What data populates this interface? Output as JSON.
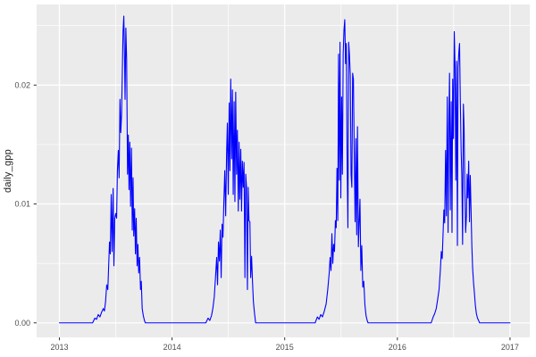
{
  "figure": {
    "background": "#ffffff"
  },
  "chart_data": {
    "type": "line",
    "title": "",
    "xlabel": "",
    "ylabel": "daily_gpp",
    "legend": "none",
    "grid": true,
    "theme": "ggplot-grey",
    "panel_background": "#ebebeb",
    "grid_color": "#ffffff",
    "line_color": "#0000ff",
    "axis_text_color": "#4d4d4d",
    "tick_mark_color": "#333333",
    "xlim": [
      2012.798,
      2017.175
    ],
    "ylim": [
      -0.00122,
      0.02678
    ],
    "x_ticks": [
      {
        "value": 2013,
        "label": "2013"
      },
      {
        "value": 2014,
        "label": "2014"
      },
      {
        "value": 2015,
        "label": "2015"
      },
      {
        "value": 2016,
        "label": "2016"
      },
      {
        "value": 2017,
        "label": "2017"
      }
    ],
    "y_ticks": [
      {
        "value": 0.0,
        "label": "0.00"
      },
      {
        "value": 0.01,
        "label": "0.01"
      },
      {
        "value": 0.02,
        "label": "0.02"
      }
    ],
    "series": [
      {
        "name": "daily_gpp",
        "color": "#0000ff",
        "points": [
          [
            2013.0,
            0
          ],
          [
            2013.295,
            0
          ],
          [
            2013.315,
            0.0004
          ],
          [
            2013.33,
            0.0003
          ],
          [
            2013.345,
            0.0007
          ],
          [
            2013.36,
            0.0005
          ],
          [
            2013.375,
            0.0009
          ],
          [
            2013.39,
            0.0012
          ],
          [
            2013.4,
            0.001
          ],
          [
            2013.41,
            0.0018
          ],
          [
            2013.42,
            0.0032
          ],
          [
            2013.43,
            0.0028
          ],
          [
            2013.445,
            0.0068
          ],
          [
            2013.452,
            0.0058
          ],
          [
            2013.46,
            0.0108
          ],
          [
            2013.468,
            0.006
          ],
          [
            2013.477,
            0.0113
          ],
          [
            2013.484,
            0.0048
          ],
          [
            2013.492,
            0.0088
          ],
          [
            2013.5,
            0.0092
          ],
          [
            2013.508,
            0.0088
          ],
          [
            2013.515,
            0.0128
          ],
          [
            2013.523,
            0.0145
          ],
          [
            2013.53,
            0.0122
          ],
          [
            2013.538,
            0.0188
          ],
          [
            2013.545,
            0.016
          ],
          [
            2013.552,
            0.0175
          ],
          [
            2013.558,
            0.0208
          ],
          [
            2013.565,
            0.0245
          ],
          [
            2013.572,
            0.0258
          ],
          [
            2013.578,
            0.0225
          ],
          [
            2013.583,
            0.0188
          ],
          [
            2013.59,
            0.0248
          ],
          [
            2013.597,
            0.0222
          ],
          [
            2013.605,
            0.0125
          ],
          [
            2013.612,
            0.0158
          ],
          [
            2013.618,
            0.0112
          ],
          [
            2013.625,
            0.0152
          ],
          [
            2013.632,
            0.0098
          ],
          [
            2013.64,
            0.0147
          ],
          [
            2013.647,
            0.0078
          ],
          [
            2013.654,
            0.0122
          ],
          [
            2013.66,
            0.0073
          ],
          [
            2013.668,
            0.0096
          ],
          [
            2013.675,
            0.0058
          ],
          [
            2013.682,
            0.0088
          ],
          [
            2013.69,
            0.0048
          ],
          [
            2013.697,
            0.0066
          ],
          [
            2013.704,
            0.0042
          ],
          [
            2013.712,
            0.0055
          ],
          [
            2013.72,
            0.0028
          ],
          [
            2013.727,
            0.0035
          ],
          [
            2013.735,
            0.0012
          ],
          [
            2013.745,
            0.0006
          ],
          [
            2013.755,
            0.0002
          ],
          [
            2013.763,
            0
          ],
          [
            2014.3,
            0
          ],
          [
            2014.32,
            0.0004
          ],
          [
            2014.335,
            0.0002
          ],
          [
            2014.35,
            0.0006
          ],
          [
            2014.362,
            0.0012
          ],
          [
            2014.375,
            0.0022
          ],
          [
            2014.388,
            0.0042
          ],
          [
            2014.396,
            0.0055
          ],
          [
            2014.404,
            0.0032
          ],
          [
            2014.412,
            0.0068
          ],
          [
            2014.42,
            0.0052
          ],
          [
            2014.428,
            0.0078
          ],
          [
            2014.436,
            0.0038
          ],
          [
            2014.444,
            0.0083
          ],
          [
            2014.452,
            0.0072
          ],
          [
            2014.46,
            0.0102
          ],
          [
            2014.468,
            0.0128
          ],
          [
            2014.476,
            0.009
          ],
          [
            2014.484,
            0.0142
          ],
          [
            2014.491,
            0.0168
          ],
          [
            2014.499,
            0.0108
          ],
          [
            2014.507,
            0.0185
          ],
          [
            2014.514,
            0.0128
          ],
          [
            2014.521,
            0.0205
          ],
          [
            2014.529,
            0.0138
          ],
          [
            2014.536,
            0.0196
          ],
          [
            2014.543,
            0.0108
          ],
          [
            2014.551,
            0.0186
          ],
          [
            2014.558,
            0.0102
          ],
          [
            2014.565,
            0.0194
          ],
          [
            2014.573,
            0.0125
          ],
          [
            2014.58,
            0.0162
          ],
          [
            2014.588,
            0.0094
          ],
          [
            2014.595,
            0.0152
          ],
          [
            2014.602,
            0.0104
          ],
          [
            2014.61,
            0.0146
          ],
          [
            2014.617,
            0.0094
          ],
          [
            2014.624,
            0.0136
          ],
          [
            2014.632,
            0.0114
          ],
          [
            2014.639,
            0.0135
          ],
          [
            2014.647,
            0.0038
          ],
          [
            2014.654,
            0.0125
          ],
          [
            2014.661,
            0.0114
          ],
          [
            2014.669,
            0.0028
          ],
          [
            2014.676,
            0.0114
          ],
          [
            2014.683,
            0.0086
          ],
          [
            2014.691,
            0.0085
          ],
          [
            2014.698,
            0.0038
          ],
          [
            2014.706,
            0.0056
          ],
          [
            2014.714,
            0.0035
          ],
          [
            2014.722,
            0.0018
          ],
          [
            2014.732,
            0.0008
          ],
          [
            2014.742,
            0
          ],
          [
            2015.27,
            0
          ],
          [
            2015.29,
            0.0005
          ],
          [
            2015.305,
            0.0003
          ],
          [
            2015.32,
            0.0007
          ],
          [
            2015.335,
            0.0005
          ],
          [
            2015.352,
            0.001
          ],
          [
            2015.368,
            0.0016
          ],
          [
            2015.382,
            0.0028
          ],
          [
            2015.395,
            0.0042
          ],
          [
            2015.403,
            0.0055
          ],
          [
            2015.411,
            0.0044
          ],
          [
            2015.419,
            0.0075
          ],
          [
            2015.427,
            0.005
          ],
          [
            2015.434,
            0.0066
          ],
          [
            2015.442,
            0.006
          ],
          [
            2015.45,
            0.0086
          ],
          [
            2015.457,
            0.008
          ],
          [
            2015.464,
            0.013
          ],
          [
            2015.471,
            0.0086
          ],
          [
            2015.478,
            0.0226
          ],
          [
            2015.485,
            0.012
          ],
          [
            2015.491,
            0.0236
          ],
          [
            2015.498,
            0.0105
          ],
          [
            2015.505,
            0.019
          ],
          [
            2015.512,
            0.0125
          ],
          [
            2015.519,
            0.0226
          ],
          [
            2015.526,
            0.0246
          ],
          [
            2015.533,
            0.0255
          ],
          [
            2015.54,
            0.0218
          ],
          [
            2015.547,
            0.0235
          ],
          [
            2015.554,
            0.0135
          ],
          [
            2015.561,
            0.008
          ],
          [
            2015.568,
            0.0236
          ],
          [
            2015.575,
            0.0225
          ],
          [
            2015.582,
            0.0208
          ],
          [
            2015.589,
            0.0125
          ],
          [
            2015.596,
            0.0114
          ],
          [
            2015.603,
            0.021
          ],
          [
            2015.61,
            0.0205
          ],
          [
            2015.617,
            0.0144
          ],
          [
            2015.625,
            0.0085
          ],
          [
            2015.632,
            0.0155
          ],
          [
            2015.639,
            0.0074
          ],
          [
            2015.646,
            0.0165
          ],
          [
            2015.654,
            0.0064
          ],
          [
            2015.661,
            0.0085
          ],
          [
            2015.668,
            0.0104
          ],
          [
            2015.676,
            0.0044
          ],
          [
            2015.684,
            0.0065
          ],
          [
            2015.693,
            0.003
          ],
          [
            2015.702,
            0.0035
          ],
          [
            2015.712,
            0.0015
          ],
          [
            2015.722,
            0.0006
          ],
          [
            2015.732,
            0.0002
          ],
          [
            2015.74,
            0
          ],
          [
            2016.3,
            0
          ],
          [
            2016.318,
            0.0005
          ],
          [
            2016.332,
            0.0008
          ],
          [
            2016.345,
            0.0012
          ],
          [
            2016.358,
            0.002
          ],
          [
            2016.37,
            0.0028
          ],
          [
            2016.382,
            0.0045
          ],
          [
            2016.39,
            0.006
          ],
          [
            2016.398,
            0.0054
          ],
          [
            2016.406,
            0.0076
          ],
          [
            2016.413,
            0.0095
          ],
          [
            2016.42,
            0.0084
          ],
          [
            2016.428,
            0.0145
          ],
          [
            2016.435,
            0.009
          ],
          [
            2016.443,
            0.019
          ],
          [
            2016.45,
            0.0076
          ],
          [
            2016.456,
            0.016
          ],
          [
            2016.463,
            0.021
          ],
          [
            2016.47,
            0.0095
          ],
          [
            2016.478,
            0.0186
          ],
          [
            2016.485,
            0.0076
          ],
          [
            2016.491,
            0.0205
          ],
          [
            2016.498,
            0.0155
          ],
          [
            2016.505,
            0.0245
          ],
          [
            2016.512,
            0.0215
          ],
          [
            2016.519,
            0.012
          ],
          [
            2016.526,
            0.022
          ],
          [
            2016.533,
            0.0065
          ],
          [
            2016.539,
            0.0215
          ],
          [
            2016.546,
            0.0228
          ],
          [
            2016.552,
            0.0235
          ],
          [
            2016.559,
            0.0186
          ],
          [
            2016.566,
            0.0145
          ],
          [
            2016.572,
            0.0125
          ],
          [
            2016.579,
            0.0066
          ],
          [
            2016.586,
            0.0184
          ],
          [
            2016.592,
            0.0165
          ],
          [
            2016.599,
            0.0114
          ],
          [
            2016.606,
            0.0076
          ],
          [
            2016.613,
            0.009
          ],
          [
            2016.619,
            0.0125
          ],
          [
            2016.626,
            0.0105
          ],
          [
            2016.633,
            0.0136
          ],
          [
            2016.64,
            0.0085
          ],
          [
            2016.647,
            0.0124
          ],
          [
            2016.654,
            0.0095
          ],
          [
            2016.661,
            0.0065
          ],
          [
            2016.668,
            0.0046
          ],
          [
            2016.676,
            0.0034
          ],
          [
            2016.684,
            0.0025
          ],
          [
            2016.692,
            0.0015
          ],
          [
            2016.701,
            0.0008
          ],
          [
            2016.711,
            0.0004
          ],
          [
            2016.721,
            0.0002
          ],
          [
            2016.73,
            0
          ],
          [
            2017.0,
            0
          ]
        ]
      }
    ]
  }
}
